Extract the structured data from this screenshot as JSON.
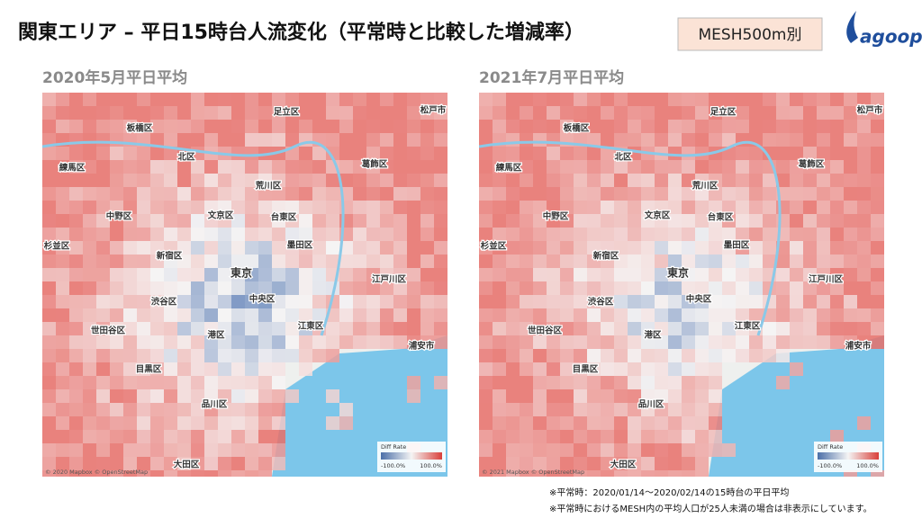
{
  "header": {
    "title": "関東エリア – 平日15時台人流変化（平常時と比較した増減率）",
    "badge": "MESH500m別",
    "logo": "agoop"
  },
  "maps": [
    {
      "title": "2020年5月平日平均",
      "attribution": "© 2020 Mapbox © OpenStreetMap",
      "legend": {
        "title": "Diff Rate",
        "min_label": "-100.0%",
        "max_label": "100.0%"
      }
    },
    {
      "title": "2021年7月平日平均",
      "attribution": "© 2021 Mapbox © OpenStreetMap",
      "legend": {
        "title": "Diff Rate",
        "min_label": "-100.0%",
        "max_label": "100.0%"
      }
    }
  ],
  "place_labels": [
    "足立区",
    "板橋区",
    "北区",
    "葛飾区",
    "練馬区",
    "荒川区",
    "中野区",
    "文京区",
    "台東区",
    "杉並区",
    "墨田区",
    "新宿区",
    "東京",
    "江戸川区",
    "渋谷区",
    "中央区",
    "江東区",
    "世田谷区",
    "港区",
    "浦安市",
    "目黒区",
    "品川区",
    "大田区",
    "松戸市"
  ],
  "notes": [
    "※平常時：2020/01/14～2020/02/14の15時台の平日平均",
    "※平常時におけるMESH内の平均人口が25人未満の場合は非表示にしています。"
  ]
}
